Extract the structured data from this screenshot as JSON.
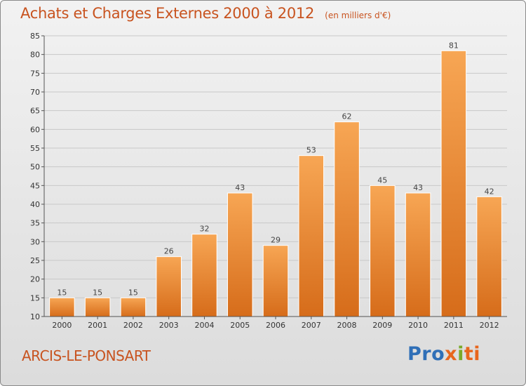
{
  "header": {
    "title": "Achats et Charges Externes 2000 à 2012",
    "unit": "(en milliers d'€)"
  },
  "footer": {
    "commune": "ARCIS-LE-PONSART",
    "logo_parts": [
      "Pro",
      "x",
      "i",
      "ti"
    ]
  },
  "colors": {
    "bar_top": "#f7a654",
    "bar_bottom": "#d66c1a",
    "title": "#c8531f"
  },
  "chart_data": {
    "type": "bar",
    "title": "Achats et Charges Externes 2000 à 2012",
    "subtitle": "(en milliers d'€)",
    "xlabel": "",
    "ylabel": "",
    "categories": [
      "2000",
      "2001",
      "2002",
      "2003",
      "2004",
      "2005",
      "2006",
      "2007",
      "2008",
      "2009",
      "2010",
      "2011",
      "2012"
    ],
    "values": [
      15,
      15,
      15,
      26,
      32,
      43,
      29,
      53,
      62,
      45,
      43,
      81,
      42
    ],
    "ylim": [
      10,
      85
    ],
    "yticks": [
      10,
      15,
      20,
      25,
      30,
      35,
      40,
      45,
      50,
      55,
      60,
      65,
      70,
      75,
      80,
      85
    ],
    "grid": true
  }
}
